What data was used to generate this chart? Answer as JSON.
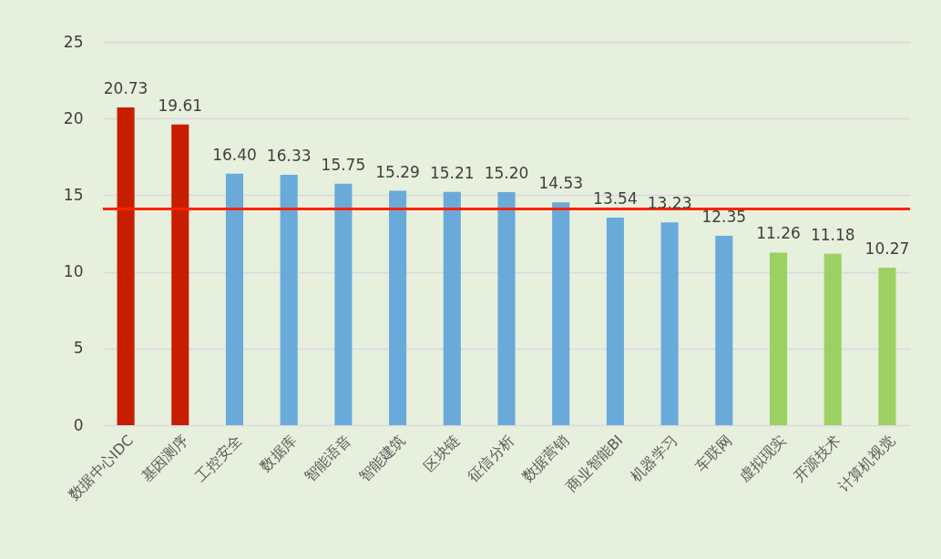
{
  "chart_data": {
    "type": "bar",
    "categories": [
      "数据中心IDC",
      "基因测序",
      "工控安全",
      "数据库",
      "智能语音",
      "智能建筑",
      "区块链",
      "征信分析",
      "数据营销",
      "商业智能BI",
      "机器学习",
      "车联网",
      "虚拟现实",
      "开源技术",
      "计算机视觉"
    ],
    "values": [
      20.73,
      19.61,
      16.4,
      16.33,
      15.75,
      15.29,
      15.21,
      15.2,
      14.53,
      13.54,
      13.23,
      12.35,
      11.26,
      11.18,
      10.27
    ],
    "value_labels": [
      "20.73",
      "19.61",
      "16.40",
      "16.33",
      "15.75",
      "15.29",
      "15.21",
      "15.20",
      "14.53",
      "13.54",
      "13.23",
      "12.35",
      "11.26",
      "11.18",
      "10.27"
    ],
    "colors": [
      "#c81e00",
      "#c81e00",
      "#6aaadb",
      "#6aaadb",
      "#6aaadb",
      "#6aaadb",
      "#6aaadb",
      "#6aaadb",
      "#6aaadb",
      "#6aaadb",
      "#6aaadb",
      "#6aaadb",
      "#9dd062",
      "#9dd062",
      "#9dd062"
    ],
    "ylim": [
      0,
      25
    ],
    "yticks": [
      0,
      5,
      10,
      15,
      20,
      25
    ],
    "grid": "y",
    "ref_lines": [
      {
        "axis": "y",
        "value": 14.1,
        "color": "#ff2200"
      }
    ]
  }
}
